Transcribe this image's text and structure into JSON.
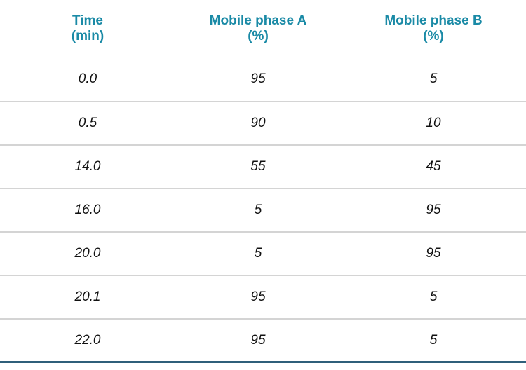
{
  "table": {
    "headers": [
      {
        "line1": "Time",
        "line2": "(min)"
      },
      {
        "line1": "Mobile phase A",
        "line2": "(%)"
      },
      {
        "line1": "Mobile phase B",
        "line2": "(%)"
      }
    ],
    "rows": [
      [
        "0.0",
        "95",
        "5"
      ],
      [
        "0.5",
        "90",
        "10"
      ],
      [
        "14.0",
        "55",
        "45"
      ],
      [
        "16.0",
        "5",
        "95"
      ],
      [
        "20.0",
        "5",
        "95"
      ],
      [
        "20.1",
        "95",
        "5"
      ],
      [
        "22.0",
        "95",
        "5"
      ]
    ],
    "colors": {
      "header_text": "#1a8aa6",
      "row_divider": "#d4d4d4",
      "bottom_rule": "#2f5f7a"
    }
  }
}
